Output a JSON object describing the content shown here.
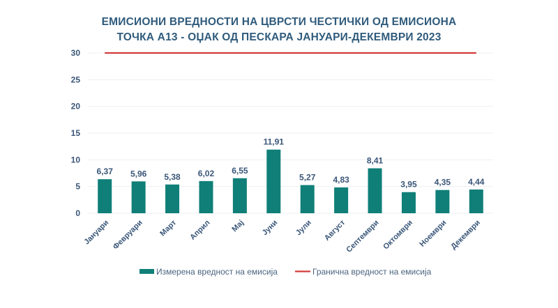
{
  "chart_data": {
    "type": "bar",
    "title": [
      "ЕМИСИОНИ ВРЕДНОСТИ НА ЦВРСТИ ЧЕСТИЧКИ ОД ЕМИСИОНА",
      "ТОЧКА А13 - ОЏАК ОД ПЕСКАРА ЈАНУАРИ-ДЕКЕМВРИ 2023"
    ],
    "xlabel": "",
    "ylabel": "",
    "ylim": [
      0,
      30
    ],
    "yticks": [
      0,
      5,
      10,
      15,
      20,
      25,
      30
    ],
    "grid": true,
    "categories": [
      "Јануари",
      "Февруари",
      "Март",
      "Април",
      "Мај",
      "Јуни",
      "Јули",
      "Август",
      "Септември",
      "Октомври",
      "Ноември",
      "Декември"
    ],
    "series": [
      {
        "name": "Измерена вредност на емисија",
        "kind": "bar",
        "color": "#0F7F78",
        "values": [
          6.37,
          5.96,
          5.38,
          6.02,
          6.55,
          11.91,
          5.27,
          4.83,
          8.41,
          3.95,
          4.35,
          4.44
        ],
        "data_labels": [
          "6,37",
          "5,96",
          "5,38",
          "6,02",
          "6,55",
          "11,91",
          "5,27",
          "4,83",
          "8,41",
          "3,95",
          "4,35",
          "4,44"
        ]
      },
      {
        "name": "Гранична вредност на емисија",
        "kind": "line",
        "color": "#D43A3A",
        "values": [
          30,
          30,
          30,
          30,
          30,
          30,
          30,
          30,
          30,
          30,
          30,
          30
        ]
      }
    ],
    "legend_position": "bottom"
  }
}
